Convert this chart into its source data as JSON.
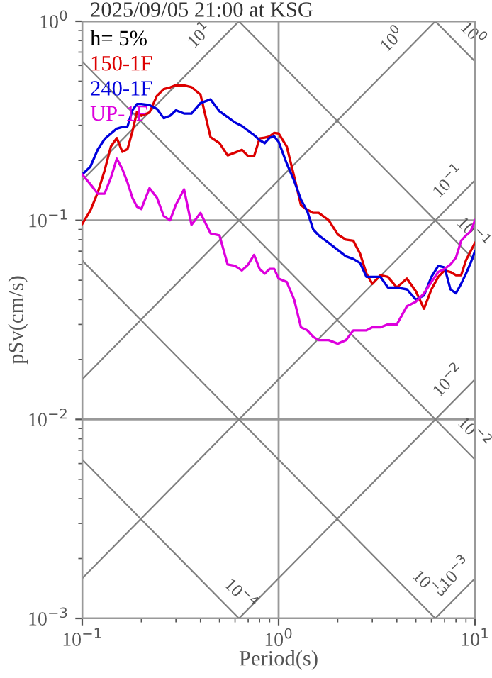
{
  "chart_data": {
    "type": "line",
    "title": "2025/09/05 21:00 at KSG",
    "xlabel": "Period(s)",
    "ylabel": "pSv(cm/s)",
    "log": "xy",
    "grid": true,
    "legend": "top left",
    "xlim": [
      0.1,
      10
    ],
    "ylim": [
      0.001,
      1
    ],
    "xticks": [
      {
        "value": 0.1,
        "label": "10$^{−1}$"
      },
      {
        "value": 1,
        "label": "10$^{0}$"
      },
      {
        "value": 10,
        "label": "10$^{1}$"
      }
    ],
    "yticks": [
      {
        "value": 0.001,
        "label": "10$^{−3}$"
      },
      {
        "value": 0.01,
        "label": "10$^{−2}$"
      },
      {
        "value": 0.1,
        "label": "10$^{−1}$"
      },
      {
        "value": 1,
        "label": "10$^{0}$"
      }
    ],
    "x": [
      0.1,
      0.11,
      0.12,
      0.13,
      0.14,
      0.15,
      0.16,
      0.17,
      0.18,
      0.19,
      0.2,
      0.22,
      0.24,
      0.26,
      0.28,
      0.3,
      0.33,
      0.36,
      0.4,
      0.45,
      0.5,
      0.55,
      0.6,
      0.65,
      0.7,
      0.75,
      0.8,
      0.85,
      0.9,
      0.95,
      1.0,
      1.1,
      1.2,
      1.3,
      1.4,
      1.5,
      1.6,
      1.8,
      2.0,
      2.2,
      2.4,
      2.6,
      2.8,
      3.0,
      3.3,
      3.6,
      4.0,
      4.5,
      5.0,
      5.5,
      6.0,
      6.5,
      7.0,
      7.5,
      8.0,
      8.5,
      9.0,
      9.5,
      10
    ],
    "annotations": [
      "h= 5%",
      {
        "text": "10$^{1}$",
        "x": 0.46,
        "y": 0.732
      },
      {
        "text": "10$^{0}$",
        "x": 4.4,
        "y": 0.7
      },
      {
        "text": "10$^{0}$",
        "x": 8.4,
        "y": 0.748
      },
      {
        "text": "10$^{−1}$",
        "x": 8.5,
        "y": 0.135
      },
      {
        "text": "10$^{−1}$",
        "x": 8.4,
        "y": 0.0748
      },
      {
        "text": "10$^{−2}$",
        "x": 8.5,
        "y": 0.0135
      },
      {
        "text": "10$^{−2}$",
        "x": 8.5,
        "y": 0.0074
      },
      {
        "text": "10$^{−4}$",
        "x": 0.55,
        "y": 0.00114
      },
      {
        "text": "10$^{−3}$",
        "x": 5.0,
        "y": 0.00126
      },
      {
        "text": "10$^{−3}$",
        "x": 9.2,
        "y": 0.00146
      }
    ],
    "series": [
      {
        "type": "line",
        "color": "#808080",
        "x": [
          0.1,
          0.628
        ],
        "values": [
          0.159,
          1
        ]
      },
      {
        "type": "line",
        "color": "#808080",
        "x": [
          0.1,
          6.28
        ],
        "values": [
          0.0159,
          1
        ]
      },
      {
        "type": "line",
        "color": "#808080",
        "x": [
          0.1,
          10
        ],
        "values": [
          0.00159,
          0.159
        ]
      },
      {
        "type": "line",
        "color": "#808080",
        "x": [
          0.628,
          10
        ],
        "values": [
          0.001,
          0.0159
        ]
      },
      {
        "type": "line",
        "color": "#808080",
        "x": [
          6.28,
          10
        ],
        "values": [
          0.001,
          0.00159
        ]
      },
      {
        "type": "line",
        "color": "#808080",
        "x": [
          6.28,
          10
        ],
        "values": [
          1,
          0.628
        ]
      },
      {
        "type": "line",
        "color": "#808080",
        "x": [
          0.628,
          10
        ],
        "values": [
          1,
          0.0628
        ]
      },
      {
        "type": "line",
        "color": "#808080",
        "x": [
          0.1,
          10
        ],
        "values": [
          0.628,
          0.00628
        ]
      },
      {
        "type": "line",
        "color": "#808080",
        "x": [
          0.1,
          6.28
        ],
        "values": [
          0.0628,
          0.001
        ]
      },
      {
        "type": "line",
        "color": "#808080",
        "x": [
          0.1,
          0.628
        ],
        "values": [
          0.00628,
          0.001
        ]
      },
      {
        "name": "150-1F",
        "color": "#dd0000",
        "values": [
          0.096,
          0.112,
          0.138,
          0.178,
          0.235,
          0.259,
          0.221,
          0.228,
          0.279,
          0.351,
          0.335,
          0.348,
          0.422,
          0.456,
          0.465,
          0.478,
          0.476,
          0.467,
          0.428,
          0.262,
          0.244,
          0.212,
          0.219,
          0.226,
          0.21,
          0.21,
          0.258,
          0.26,
          0.264,
          0.275,
          0.273,
          0.235,
          0.166,
          0.119,
          0.113,
          0.109,
          0.109,
          0.1,
          0.085,
          0.08,
          0.079,
          0.068,
          0.054,
          0.048,
          0.053,
          0.052,
          0.046,
          0.051,
          0.044,
          0.036,
          0.045,
          0.052,
          0.056,
          0.055,
          0.053,
          0.053,
          0.063,
          0.07,
          0.077
        ]
      },
      {
        "name": "240-1F",
        "color": "#0000dd",
        "values": [
          0.17,
          0.186,
          0.227,
          0.256,
          0.273,
          0.289,
          0.294,
          0.296,
          0.357,
          0.384,
          0.384,
          0.379,
          0.363,
          0.326,
          0.335,
          0.357,
          0.344,
          0.344,
          0.388,
          0.405,
          0.353,
          0.33,
          0.31,
          0.298,
          0.282,
          0.268,
          0.253,
          0.244,
          0.26,
          0.264,
          0.248,
          0.193,
          0.158,
          0.127,
          0.111,
          0.09,
          0.084,
          0.077,
          0.071,
          0.066,
          0.064,
          0.061,
          0.052,
          0.052,
          0.052,
          0.046,
          0.046,
          0.045,
          0.04,
          0.042,
          0.052,
          0.059,
          0.058,
          0.045,
          0.043,
          0.048,
          0.054,
          0.061,
          0.07
        ]
      },
      {
        "name": "UP-1F",
        "color": "#dd00dd",
        "values": [
          0.17,
          0.152,
          0.136,
          0.136,
          0.164,
          0.204,
          0.181,
          0.155,
          0.13,
          0.117,
          0.114,
          0.145,
          0.13,
          0.105,
          0.1,
          0.12,
          0.143,
          0.095,
          0.109,
          0.086,
          0.084,
          0.06,
          0.059,
          0.056,
          0.06,
          0.067,
          0.057,
          0.054,
          0.057,
          0.057,
          0.051,
          0.049,
          0.04,
          0.029,
          0.028,
          0.026,
          0.025,
          0.025,
          0.024,
          0.025,
          0.028,
          0.028,
          0.028,
          0.029,
          0.029,
          0.03,
          0.03,
          0.037,
          0.039,
          0.043,
          0.049,
          0.055,
          0.057,
          0.06,
          0.065,
          0.079,
          0.084,
          0.088,
          0.1
        ]
      }
    ]
  }
}
